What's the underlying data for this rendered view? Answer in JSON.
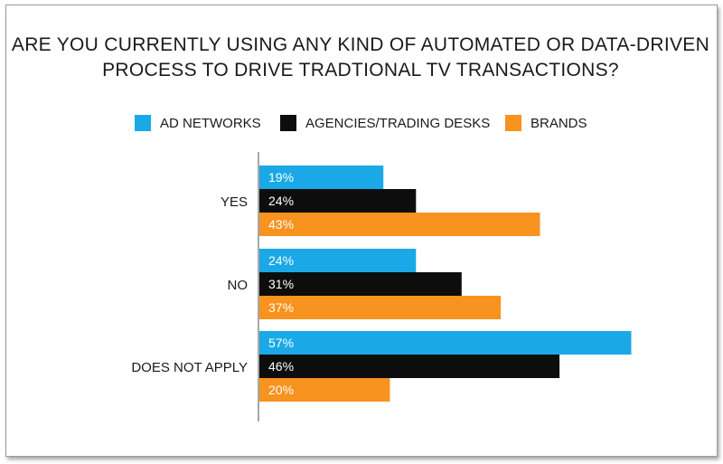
{
  "chart_data": {
    "type": "bar",
    "orientation": "horizontal",
    "title_lines": [
      "ARE YOU CURRENTLY USING ANY KIND OF AUTOMATED OR DATA-DRIVEN",
      "PROCESS TO DRIVE TRADTIONAL TV TRANSACTIONS?"
    ],
    "categories": [
      "YES",
      "NO",
      "DOES NOT APPLY"
    ],
    "series": [
      {
        "name": "AD NETWORKS",
        "color": "#1aa9e6",
        "values": [
          19,
          24,
          57
        ]
      },
      {
        "name": "AGENCIES/TRADING DESKS",
        "color": "#0d0d0d",
        "values": [
          24,
          31,
          46
        ]
      },
      {
        "name": "BRANDS",
        "color": "#f7931e",
        "values": [
          43,
          37,
          20
        ]
      }
    ],
    "value_suffix": "%",
    "xlim": [
      0,
      60
    ],
    "legend_position": "top-center",
    "grid": false
  }
}
